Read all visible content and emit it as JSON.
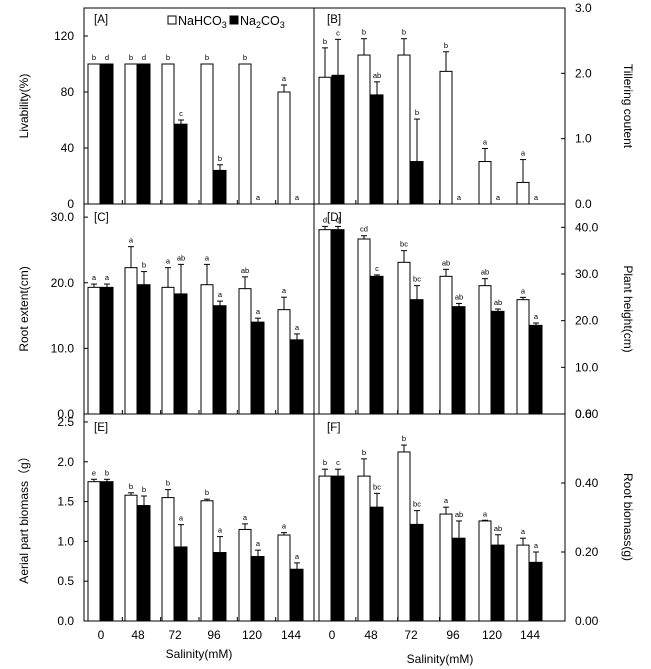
{
  "figure": {
    "legend": [
      {
        "label": "NaHCO3",
        "fill": "#ffffff"
      },
      {
        "label": "Na2CO3",
        "fill": "#000000"
      }
    ],
    "colors": {
      "nahco3": "#ffffff",
      "na2co3": "#000000",
      "stroke": "#000000"
    }
  },
  "chart_data": [
    {
      "id": "A",
      "panel_label": "[A]",
      "type": "bar",
      "categories": [
        "0",
        "48",
        "72",
        "96",
        "120",
        "144"
      ],
      "ylabel": "Livability(%)",
      "yaxis_side": "left",
      "ylim": [
        0,
        140
      ],
      "yticks": [
        0,
        40,
        80,
        120
      ],
      "tick_format": "int",
      "series": [
        {
          "name": "NaHCO3",
          "values": [
            100,
            100,
            100,
            100,
            100,
            80
          ],
          "errors": [
            0,
            0,
            0,
            0,
            0,
            5
          ],
          "sig": [
            "b",
            "b",
            "b",
            "b",
            "b",
            "a"
          ]
        },
        {
          "name": "Na2CO3",
          "values": [
            100,
            100,
            57,
            24,
            0,
            0
          ],
          "errors": [
            0,
            0,
            3,
            4,
            0,
            0
          ],
          "sig": [
            "d",
            "d",
            "c",
            "b",
            "a",
            "a"
          ]
        }
      ]
    },
    {
      "id": "B",
      "panel_label": "[B]",
      "type": "bar",
      "categories": [
        "0",
        "48",
        "72",
        "96",
        "120",
        "144"
      ],
      "ylabel": "Tillering coutent",
      "yaxis_side": "right",
      "ylim": [
        0,
        3.0
      ],
      "yticks": [
        0,
        1,
        2,
        3
      ],
      "tick_format": "1dp",
      "series": [
        {
          "name": "NaHCO3",
          "values": [
            1.94,
            2.28,
            2.28,
            2.03,
            0.65,
            0.33
          ],
          "errors": [
            0.45,
            0.25,
            0.25,
            0.3,
            0.2,
            0.35
          ],
          "sig": [
            "b",
            "b",
            "b",
            "b",
            "a",
            "a"
          ]
        },
        {
          "name": "Na2CO3",
          "values": [
            1.97,
            1.67,
            0.65,
            0,
            0,
            0
          ],
          "errors": [
            0.55,
            0.2,
            0.65,
            0,
            0,
            0
          ],
          "sig": [
            "c",
            "ab",
            "b",
            "a",
            "a",
            "a"
          ]
        }
      ]
    },
    {
      "id": "C",
      "panel_label": "[C]",
      "type": "bar",
      "categories": [
        "0",
        "48",
        "72",
        "96",
        "120",
        "144"
      ],
      "ylabel": "Root extent(cm)",
      "yaxis_side": "left",
      "ylim": [
        0,
        32
      ],
      "yticks": [
        0,
        10,
        20,
        30
      ],
      "tick_format": "1dp",
      "series": [
        {
          "name": "NaHCO3",
          "values": [
            19.3,
            22.3,
            19.3,
            19.7,
            19.1,
            15.9
          ],
          "errors": [
            0.5,
            3.2,
            3.0,
            3.1,
            1.8,
            1.9
          ],
          "sig": [
            "a",
            "a",
            "a",
            "a",
            "ab",
            "a"
          ]
        },
        {
          "name": "Na2CO3",
          "values": [
            19.3,
            19.7,
            18.3,
            16.5,
            14.0,
            11.3
          ],
          "errors": [
            0.5,
            2.0,
            4.5,
            0.7,
            0.6,
            0.9
          ],
          "sig": [
            "a",
            "b",
            "ab",
            "a",
            "a",
            "a"
          ]
        }
      ]
    },
    {
      "id": "D",
      "panel_label": "[D]",
      "type": "bar",
      "categories": [
        "0",
        "48",
        "72",
        "96",
        "120",
        "144"
      ],
      "ylabel": "Plant height(cm)",
      "yaxis_side": "right",
      "ylim": [
        0,
        45
      ],
      "yticks": [
        0,
        10,
        20,
        30,
        40
      ],
      "tick_format": "1dp",
      "series": [
        {
          "name": "NaHCO3",
          "values": [
            39.5,
            37.5,
            32.5,
            29.5,
            27.5,
            24.5
          ],
          "errors": [
            0.7,
            0.7,
            2.5,
            1.5,
            1.5,
            0.5
          ],
          "sig": [
            "d",
            "cd",
            "bc",
            "ab",
            "ab",
            "a"
          ]
        },
        {
          "name": "Na2CO3",
          "values": [
            39.5,
            29.5,
            24.5,
            23.0,
            22.0,
            19.0
          ],
          "errors": [
            0.7,
            0.3,
            3.0,
            0.7,
            0.5,
            0.5
          ],
          "sig": [
            "d",
            "c",
            "bc",
            "ab",
            "ab",
            "a"
          ]
        }
      ]
    },
    {
      "id": "E",
      "panel_label": "[E]",
      "type": "bar",
      "categories": [
        "0",
        "48",
        "72",
        "96",
        "120",
        "144"
      ],
      "ylabel": "Aerial part biomass（g）",
      "yaxis_side": "left",
      "ylim": [
        0,
        2.6
      ],
      "yticks": [
        0,
        0.5,
        1.0,
        1.5,
        2.0,
        2.5
      ],
      "tick_format": "1dp",
      "series": [
        {
          "name": "NaHCO3",
          "values": [
            1.75,
            1.58,
            1.55,
            1.51,
            1.15,
            1.08
          ],
          "errors": [
            0.03,
            0.03,
            0.1,
            0.02,
            0.07,
            0.03
          ],
          "sig": [
            "e",
            "b",
            "b",
            "b",
            "a",
            "a"
          ]
        },
        {
          "name": "Na2CO3",
          "values": [
            1.75,
            1.45,
            0.93,
            0.86,
            0.81,
            0.65
          ],
          "errors": [
            0.03,
            0.12,
            0.28,
            0.2,
            0.08,
            0.08
          ],
          "sig": [
            "b",
            "b",
            "a",
            "a",
            "a",
            "a"
          ]
        }
      ]
    },
    {
      "id": "F",
      "panel_label": "[F]",
      "type": "bar",
      "categories": [
        "0",
        "48",
        "72",
        "96",
        "120",
        "144"
      ],
      "ylabel": "Root biomass(g)",
      "yaxis_side": "right",
      "ylim": [
        0,
        0.6
      ],
      "yticks": [
        0,
        0.2,
        0.4,
        0.6
      ],
      "tick_format": "2dp",
      "series": [
        {
          "name": "NaHCO3",
          "values": [
            0.42,
            0.42,
            0.49,
            0.31,
            0.29,
            0.22
          ],
          "errors": [
            0.02,
            0.05,
            0.02,
            0.02,
            0.002,
            0.02
          ],
          "sig": [
            "b",
            "b",
            "b",
            "a",
            "a",
            "a"
          ]
        },
        {
          "name": "Na2CO3",
          "values": [
            0.42,
            0.33,
            0.28,
            0.24,
            0.22,
            0.17
          ],
          "errors": [
            0.02,
            0.04,
            0.04,
            0.05,
            0.03,
            0.03
          ],
          "sig": [
            "c",
            "bc",
            "bc",
            "ab",
            "ab",
            "a"
          ]
        }
      ]
    }
  ],
  "xlabels": [
    {
      "text": "Salinity(mM)"
    },
    {
      "text": "Salinity(mM)"
    }
  ]
}
